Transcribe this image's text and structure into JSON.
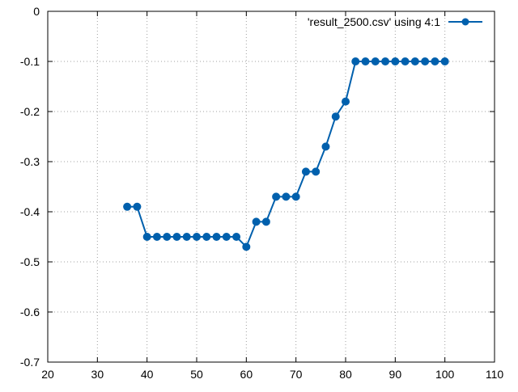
{
  "chart_data": {
    "type": "line",
    "title": "",
    "xlabel": "",
    "ylabel": "",
    "xlim": [
      20,
      110
    ],
    "ylim": [
      -0.7,
      0
    ],
    "x_ticks": [
      20,
      30,
      40,
      50,
      60,
      70,
      80,
      90,
      100,
      110
    ],
    "y_ticks": [
      0,
      -0.1,
      -0.2,
      -0.3,
      -0.4,
      -0.5,
      -0.6,
      -0.7
    ],
    "x_tick_labels": [
      "20",
      "30",
      "40",
      "50",
      "60",
      "70",
      "80",
      "90",
      "100",
      "110"
    ],
    "y_tick_labels": [
      "0",
      "-0.1",
      "-0.2",
      "-0.3",
      "-0.4",
      "-0.5",
      "-0.6",
      "-0.7"
    ],
    "grid": true,
    "legend_position": "top-right",
    "series": [
      {
        "name": "'result_2500.csv' using 4:1",
        "color": "#0060ad",
        "marker": "circle",
        "x": [
          36,
          38,
          40,
          42,
          44,
          46,
          48,
          50,
          52,
          54,
          56,
          58,
          60,
          62,
          64,
          66,
          68,
          70,
          72,
          74,
          76,
          78,
          80,
          82,
          84,
          86,
          88,
          90,
          92,
          94,
          96,
          98,
          100
        ],
        "y": [
          -0.39,
          -0.39,
          -0.45,
          -0.45,
          -0.45,
          -0.45,
          -0.45,
          -0.45,
          -0.45,
          -0.45,
          -0.45,
          -0.45,
          -0.47,
          -0.42,
          -0.42,
          -0.37,
          -0.37,
          -0.37,
          -0.32,
          -0.32,
          -0.27,
          -0.21,
          -0.18,
          -0.1,
          -0.1,
          -0.1,
          -0.1,
          -0.1,
          -0.1,
          -0.1,
          -0.1,
          -0.1,
          -0.1
        ]
      }
    ]
  }
}
